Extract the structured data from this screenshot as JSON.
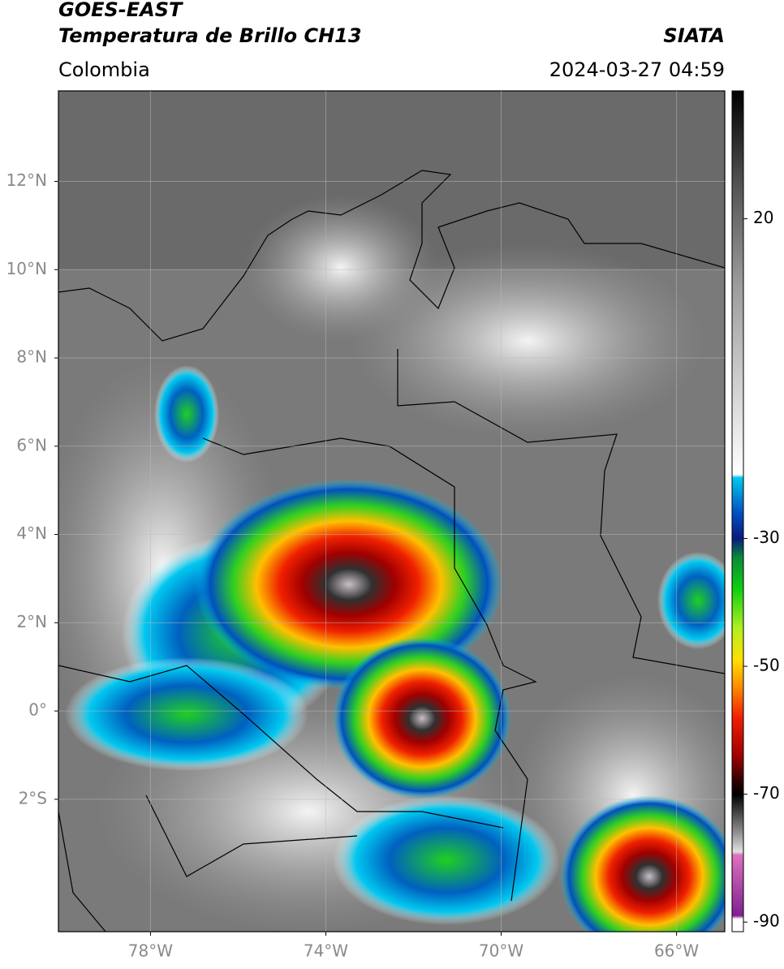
{
  "header": {
    "source": "GOES-EAST",
    "product": "Temperatura de Brillo CH13",
    "agency": "SIATA",
    "region": "Colombia",
    "datetime": "2024-03-27 04:59"
  },
  "map": {
    "lon_lim": [
      -80.1,
      -64.9
    ],
    "lat_lim": [
      -5,
      14.05
    ],
    "lat_ticks": [
      {
        "value": 12,
        "label": "12°N"
      },
      {
        "value": 10,
        "label": "10°N"
      },
      {
        "value": 8,
        "label": "8°N"
      },
      {
        "value": 6,
        "label": "6°N"
      },
      {
        "value": 4,
        "label": "4°N"
      },
      {
        "value": 2,
        "label": "2°N"
      },
      {
        "value": 0,
        "label": "0°"
      },
      {
        "value": -2,
        "label": "2°S"
      }
    ],
    "lon_ticks": [
      {
        "value": -78,
        "label": "78°W"
      },
      {
        "value": -74,
        "label": "74°W"
      },
      {
        "value": -70,
        "label": "70°W"
      },
      {
        "value": -66,
        "label": "66°W"
      }
    ],
    "grid": true
  },
  "colorbar": {
    "lim": [
      -91.5,
      40
    ],
    "ticks": [
      20,
      -30,
      -50,
      -70,
      -90
    ],
    "colormap": [
      {
        "value": 40,
        "color": "#000000"
      },
      {
        "value": 25,
        "color": "#555555"
      },
      {
        "value": 10,
        "color": "#9a9a9a"
      },
      {
        "value": -20,
        "color": "#ffffff"
      },
      {
        "value": -20.5,
        "color": "#00c8f0"
      },
      {
        "value": -26,
        "color": "#0050c0"
      },
      {
        "value": -30,
        "color": "#0a1a80"
      },
      {
        "value": -33,
        "color": "#0a8a3a"
      },
      {
        "value": -38,
        "color": "#10d010"
      },
      {
        "value": -44,
        "color": "#b0f020"
      },
      {
        "value": -49,
        "color": "#ffe000"
      },
      {
        "value": -53,
        "color": "#ff9000"
      },
      {
        "value": -58,
        "color": "#f02000"
      },
      {
        "value": -64,
        "color": "#a00000"
      },
      {
        "value": -68,
        "color": "#300000"
      },
      {
        "value": -70,
        "color": "#000000"
      },
      {
        "value": -76,
        "color": "#909090"
      },
      {
        "value": -79,
        "color": "#e0e0e0"
      },
      {
        "value": -79.5,
        "color": "#e070c0"
      },
      {
        "value": -89,
        "color": "#802090"
      },
      {
        "value": -89.5,
        "color": "#ffffff"
      }
    ]
  }
}
